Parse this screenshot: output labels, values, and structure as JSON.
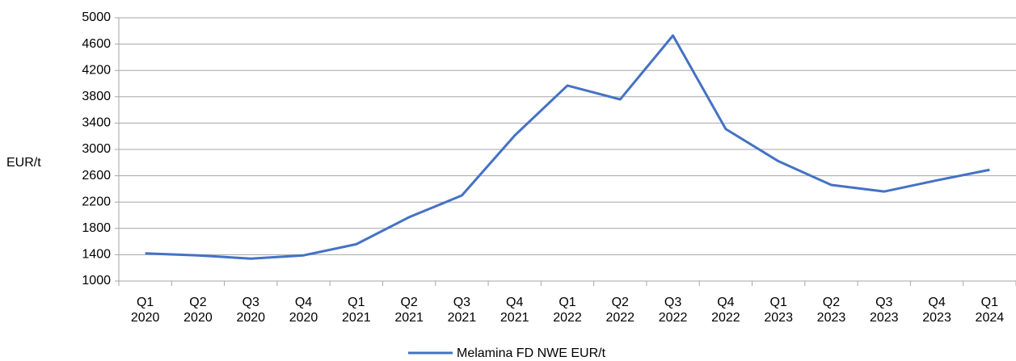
{
  "chart_data": {
    "type": "line",
    "y_label": "EUR/t",
    "categories": [
      [
        "Q1",
        "2020"
      ],
      [
        "Q2",
        "2020"
      ],
      [
        "Q3",
        "2020"
      ],
      [
        "Q4",
        "2020"
      ],
      [
        "Q1",
        "2021"
      ],
      [
        "Q2",
        "2021"
      ],
      [
        "Q3",
        "2021"
      ],
      [
        "Q4",
        "2021"
      ],
      [
        "Q1",
        "2022"
      ],
      [
        "Q2",
        "2022"
      ],
      [
        "Q3",
        "2022"
      ],
      [
        "Q4",
        "2022"
      ],
      [
        "Q1",
        "2023"
      ],
      [
        "Q2",
        "2023"
      ],
      [
        "Q3",
        "2023"
      ],
      [
        "Q4",
        "2023"
      ],
      [
        "Q1",
        "2024"
      ]
    ],
    "series": [
      {
        "name": "Melamina FD NWE EUR/t",
        "color": "#4472c4",
        "values": [
          1420,
          1390,
          1340,
          1390,
          1560,
          1970,
          2300,
          3210,
          3970,
          3760,
          4730,
          3310,
          2820,
          2460,
          2360,
          2530,
          2690
        ]
      }
    ],
    "ylim": [
      1000,
      5000
    ],
    "yticks": [
      1000,
      1400,
      1800,
      2200,
      2600,
      3000,
      3400,
      3800,
      4200,
      4600,
      5000
    ],
    "grid": true,
    "legend": "bottom"
  }
}
